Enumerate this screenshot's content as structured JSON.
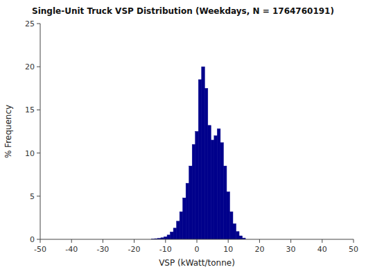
{
  "chart_data": {
    "type": "bar",
    "title": "Single-Unit Truck VSP Distribution (Weekdays, N = 1764760191)",
    "xlabel": "VSP (kWatt/tonne)",
    "ylabel": "% Frequency",
    "x": [
      -14,
      -13,
      -12,
      -11,
      -10,
      -9,
      -8,
      -7,
      -6,
      -5,
      -4,
      -3,
      -2,
      -1,
      0,
      1,
      2,
      3,
      4,
      5,
      6,
      7,
      8,
      9,
      10,
      11,
      12,
      13,
      14,
      15
    ],
    "values": [
      0.05,
      0.08,
      0.12,
      0.18,
      0.3,
      0.5,
      0.85,
      1.3,
      2.1,
      3.2,
      4.8,
      6.5,
      8.5,
      11.0,
      12.5,
      18.5,
      20.0,
      17.5,
      13.2,
      11.5,
      12.0,
      12.8,
      11.2,
      8.5,
      5.5,
      3.2,
      1.8,
      0.9,
      0.4,
      0.15
    ],
    "color": "#00008B",
    "xlim": [
      -50,
      50
    ],
    "ylim": [
      0,
      25
    ],
    "xticks": [
      -50,
      -40,
      -30,
      -20,
      -10,
      0,
      10,
      20,
      30,
      40,
      50
    ],
    "yticks": [
      0,
      5,
      10,
      15,
      20,
      25
    ],
    "grid": false
  }
}
